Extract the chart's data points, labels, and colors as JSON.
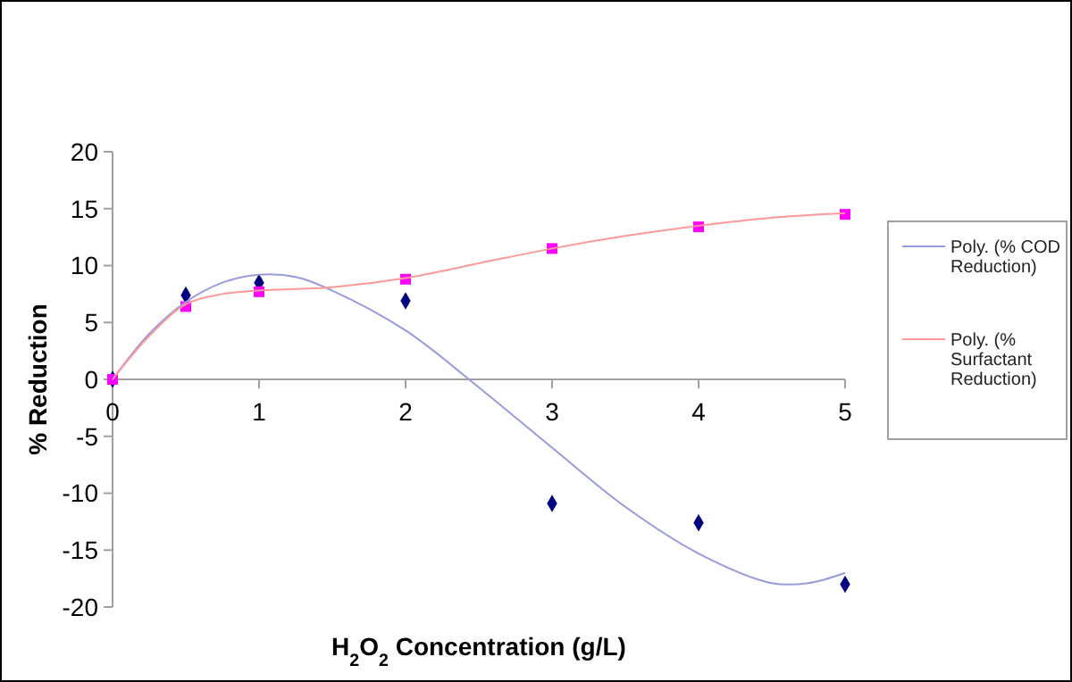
{
  "chart_data": {
    "type": "scatter",
    "xlabel": "H$_{2}$O$_{2}$ Concentration (g/L)",
    "ylabel": "% Reduction",
    "xlim": [
      0,
      5
    ],
    "ylim": [
      -20,
      20
    ],
    "xticks": [
      0,
      1,
      2,
      3,
      4,
      5
    ],
    "yticks": [
      -20,
      -15,
      -10,
      -5,
      0,
      5,
      10,
      15,
      20
    ],
    "grid": false,
    "legend": "right",
    "series": [
      {
        "marker": "diamond",
        "color": "#000080",
        "x": [
          0,
          0.5,
          1,
          2,
          3,
          4,
          5
        ],
        "values": [
          0,
          7.4,
          8.5,
          6.9,
          -10.9,
          -12.6,
          -18.0
        ]
      },
      {
        "marker": "square",
        "color": "#ff00ff",
        "x": [
          0,
          0.5,
          1,
          2,
          3,
          4,
          5
        ],
        "values": [
          0,
          6.4,
          7.7,
          8.8,
          11.5,
          13.4,
          14.5
        ]
      },
      {
        "type": "line",
        "name": "Poly. (% COD Reduction)",
        "color": "#9999dd",
        "marker": "none",
        "line_style": "solid",
        "x": [
          0,
          0.25,
          0.5,
          0.75,
          1,
          1.25,
          1.5,
          2,
          2.5,
          3,
          3.5,
          4,
          4.5,
          4.75,
          5
        ],
        "values": [
          0,
          4.0,
          6.8,
          8.5,
          9.2,
          9.0,
          7.8,
          4.3,
          -0.7,
          -6.0,
          -11.2,
          -15.3,
          -17.9,
          -17.9,
          -17.0
        ]
      },
      {
        "type": "line",
        "name": "Poly. (% Surfactant Reduction)",
        "color": "#ff9999",
        "marker": "none",
        "line_style": "solid",
        "x": [
          0,
          0.25,
          0.5,
          0.75,
          1,
          1.5,
          2,
          2.5,
          3,
          3.5,
          4,
          4.5,
          5
        ],
        "values": [
          0,
          3.8,
          6.6,
          7.5,
          7.8,
          8.1,
          8.9,
          10.2,
          11.5,
          12.6,
          13.5,
          14.2,
          14.6
        ]
      }
    ]
  }
}
